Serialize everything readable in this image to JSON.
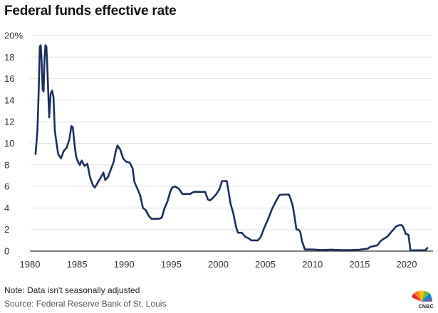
{
  "page": {
    "title": "Federal funds effective rate",
    "note": "Note: Data isn't seasonally adjusted",
    "source": "Source: Federal Reserve Bank of St. Louis",
    "logo_text": "CNBC"
  },
  "chart_data": {
    "type": "line",
    "title": "Federal funds effective rate",
    "xlabel": "",
    "ylabel": "",
    "xlim": [
      1980.5,
      2022.3
    ],
    "ylim": [
      0,
      20
    ],
    "x_ticks": [
      1980,
      1985,
      1990,
      1995,
      2000,
      2005,
      2010,
      2015,
      2020
    ],
    "y_ticks": [
      0,
      2,
      4,
      6,
      8,
      10,
      12,
      14,
      16,
      18,
      20
    ],
    "y_tick_labels": [
      "0",
      "2",
      "4",
      "6",
      "8",
      "10",
      "12",
      "14",
      "16",
      "18",
      "20%"
    ],
    "grid": "horizontal",
    "line_color": "#1b2f5e",
    "series": [
      {
        "x": [
          1980.6,
          1980.8,
          1980.95,
          1981.05,
          1981.15,
          1981.25,
          1981.35,
          1981.45,
          1981.55,
          1981.65,
          1981.75,
          1981.85,
          1981.95,
          1982.05,
          1982.2,
          1982.35,
          1982.5,
          1982.65,
          1982.8,
          1983.0,
          1983.3,
          1983.6,
          1983.9,
          1984.2,
          1984.4,
          1984.55,
          1984.7,
          1984.9,
          1985.1,
          1985.3,
          1985.5,
          1985.8,
          1986.1,
          1986.4,
          1986.7,
          1986.9,
          1987.1,
          1987.3,
          1987.5,
          1987.7,
          1987.8,
          1988.0,
          1988.3,
          1988.6,
          1988.9,
          1989.1,
          1989.3,
          1989.6,
          1989.9,
          1990.2,
          1990.6,
          1990.9,
          1991.1,
          1991.4,
          1991.7,
          1992.0,
          1992.3,
          1992.6,
          1992.9,
          1993.3,
          1993.7,
          1994.0,
          1994.3,
          1994.6,
          1994.9,
          1995.1,
          1995.4,
          1995.8,
          1996.2,
          1996.6,
          1997.0,
          1997.4,
          1997.8,
          1998.2,
          1998.6,
          1998.9,
          1999.1,
          1999.4,
          1999.8,
          2000.1,
          2000.4,
          2000.7,
          2000.9,
          2001.1,
          2001.3,
          2001.6,
          2001.9,
          2002.1,
          2002.5,
          2002.9,
          2003.2,
          2003.5,
          2003.8,
          2004.2,
          2004.5,
          2004.9,
          2005.3,
          2005.7,
          2006.1,
          2006.5,
          2006.8,
          2007.2,
          2007.5,
          2007.7,
          2007.9,
          2008.1,
          2008.3,
          2008.5,
          2008.7,
          2008.9,
          2009.2,
          2010.0,
          2011.0,
          2012.0,
          2013.0,
          2014.0,
          2015.0,
          2015.9,
          2016.1,
          2016.9,
          2017.2,
          2017.5,
          2017.9,
          2018.2,
          2018.5,
          2018.9,
          2019.2,
          2019.5,
          2019.7,
          2019.9,
          2020.1,
          2020.2,
          2020.4,
          2021.0,
          2021.5,
          2021.9,
          2022.0,
          2022.2
        ],
        "values": [
          9.0,
          11.2,
          15.5,
          19.0,
          19.1,
          17.5,
          15.0,
          14.8,
          17.8,
          19.1,
          19.0,
          17.0,
          14.6,
          12.4,
          14.6,
          14.9,
          14.3,
          11.2,
          10.2,
          9.0,
          8.6,
          9.3,
          9.6,
          10.4,
          11.6,
          11.5,
          10.2,
          8.8,
          8.3,
          8.0,
          8.4,
          7.9,
          8.1,
          6.8,
          6.1,
          5.9,
          6.2,
          6.5,
          6.8,
          7.1,
          7.3,
          6.6,
          6.9,
          7.6,
          8.3,
          9.2,
          9.8,
          9.4,
          8.6,
          8.3,
          8.2,
          7.7,
          6.4,
          5.8,
          5.2,
          4.0,
          3.8,
          3.3,
          3.0,
          3.0,
          3.0,
          3.1,
          4.0,
          4.6,
          5.5,
          5.9,
          6.0,
          5.8,
          5.3,
          5.3,
          5.3,
          5.5,
          5.5,
          5.5,
          5.5,
          4.8,
          4.7,
          4.9,
          5.3,
          5.7,
          6.5,
          6.5,
          6.5,
          5.5,
          4.4,
          3.5,
          2.2,
          1.7,
          1.7,
          1.3,
          1.2,
          1.0,
          1.0,
          1.0,
          1.3,
          2.2,
          3.0,
          3.9,
          4.6,
          5.2,
          5.25,
          5.25,
          5.25,
          4.8,
          4.2,
          3.2,
          2.0,
          2.0,
          1.8,
          0.9,
          0.15,
          0.15,
          0.1,
          0.14,
          0.1,
          0.09,
          0.13,
          0.24,
          0.38,
          0.54,
          0.9,
          1.1,
          1.3,
          1.6,
          1.9,
          2.3,
          2.4,
          2.4,
          2.1,
          1.6,
          1.55,
          1.5,
          0.05,
          0.08,
          0.08,
          0.08,
          0.08,
          0.3
        ]
      }
    ]
  }
}
